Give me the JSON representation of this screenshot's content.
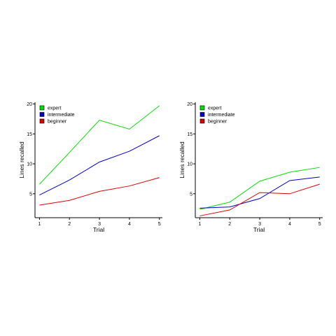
{
  "chart_data": [
    {
      "type": "line",
      "xlabel": "Trial",
      "ylabel": "Lines recalled",
      "x": [
        1,
        2,
        3,
        4,
        5
      ],
      "xticks": [
        "1",
        "2",
        "3",
        "4",
        "5"
      ],
      "yticks": [
        "5",
        "10",
        "15",
        "20"
      ],
      "xlim": [
        0.85,
        5.1
      ],
      "ylim": [
        1.0,
        20.3
      ],
      "grid": false,
      "legend_position": "top-left",
      "series": [
        {
          "name": "expert",
          "color": "#00e000",
          "values": [
            6.6,
            11.9,
            17.3,
            15.8,
            19.7
          ]
        },
        {
          "name": "intermediate",
          "color": "#0000cc",
          "values": [
            4.8,
            7.3,
            10.3,
            12.1,
            14.7
          ]
        },
        {
          "name": "beginner",
          "color": "#dd0000",
          "values": [
            3.1,
            3.9,
            5.4,
            6.3,
            7.7
          ]
        }
      ]
    },
    {
      "type": "line",
      "xlabel": "Trial",
      "ylabel": "Lines recalled",
      "x": [
        1,
        2,
        3,
        4,
        5
      ],
      "xticks": [
        "1",
        "2",
        "3",
        "4",
        "5"
      ],
      "yticks": [
        "5",
        "10",
        "15",
        "20"
      ],
      "xlim": [
        0.85,
        5.1
      ],
      "ylim": [
        1.0,
        20.3
      ],
      "grid": false,
      "legend_position": "top-left",
      "series": [
        {
          "name": "expert",
          "color": "#00e000",
          "values": [
            2.4,
            3.6,
            7.1,
            8.6,
            9.4
          ]
        },
        {
          "name": "intermediate",
          "color": "#0000cc",
          "values": [
            2.6,
            2.8,
            4.2,
            7.2,
            7.8
          ]
        },
        {
          "name": "beginner",
          "color": "#dd0000",
          "values": [
            1.3,
            2.3,
            5.2,
            5.0,
            6.6
          ]
        }
      ]
    }
  ]
}
